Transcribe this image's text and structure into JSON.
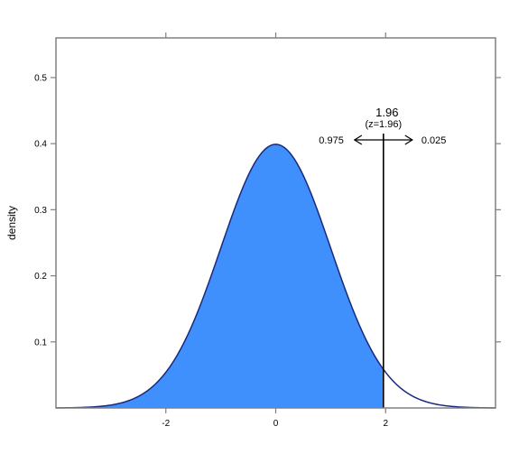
{
  "chart_data": {
    "type": "area",
    "title": "",
    "xlabel": "",
    "ylabel": "density",
    "xlim": [
      -4,
      4
    ],
    "ylim": [
      0,
      0.56
    ],
    "x_ticks": [
      {
        "value": -2,
        "label": "-2"
      },
      {
        "value": 0,
        "label": "0"
      },
      {
        "value": 2,
        "label": "2"
      }
    ],
    "y_ticks": [
      {
        "value": 0.1,
        "label": "0.1"
      },
      {
        "value": 0.2,
        "label": "0.2"
      },
      {
        "value": 0.3,
        "label": "0.3"
      },
      {
        "value": 0.4,
        "label": "0.4"
      },
      {
        "value": 0.5,
        "label": "0.5"
      }
    ],
    "grid": false,
    "series": [
      {
        "distribution": "standard normal",
        "mean": 0,
        "sd": 1,
        "shaded_below": 1.96,
        "fill_color": "#3f8ffc",
        "line_color": "#1a2a7a"
      }
    ],
    "cutoff": {
      "x": 1.96,
      "label": "1.96",
      "sublabel": "(z=1.96)",
      "left_prob": "0.975",
      "right_prob": "0.025"
    }
  }
}
